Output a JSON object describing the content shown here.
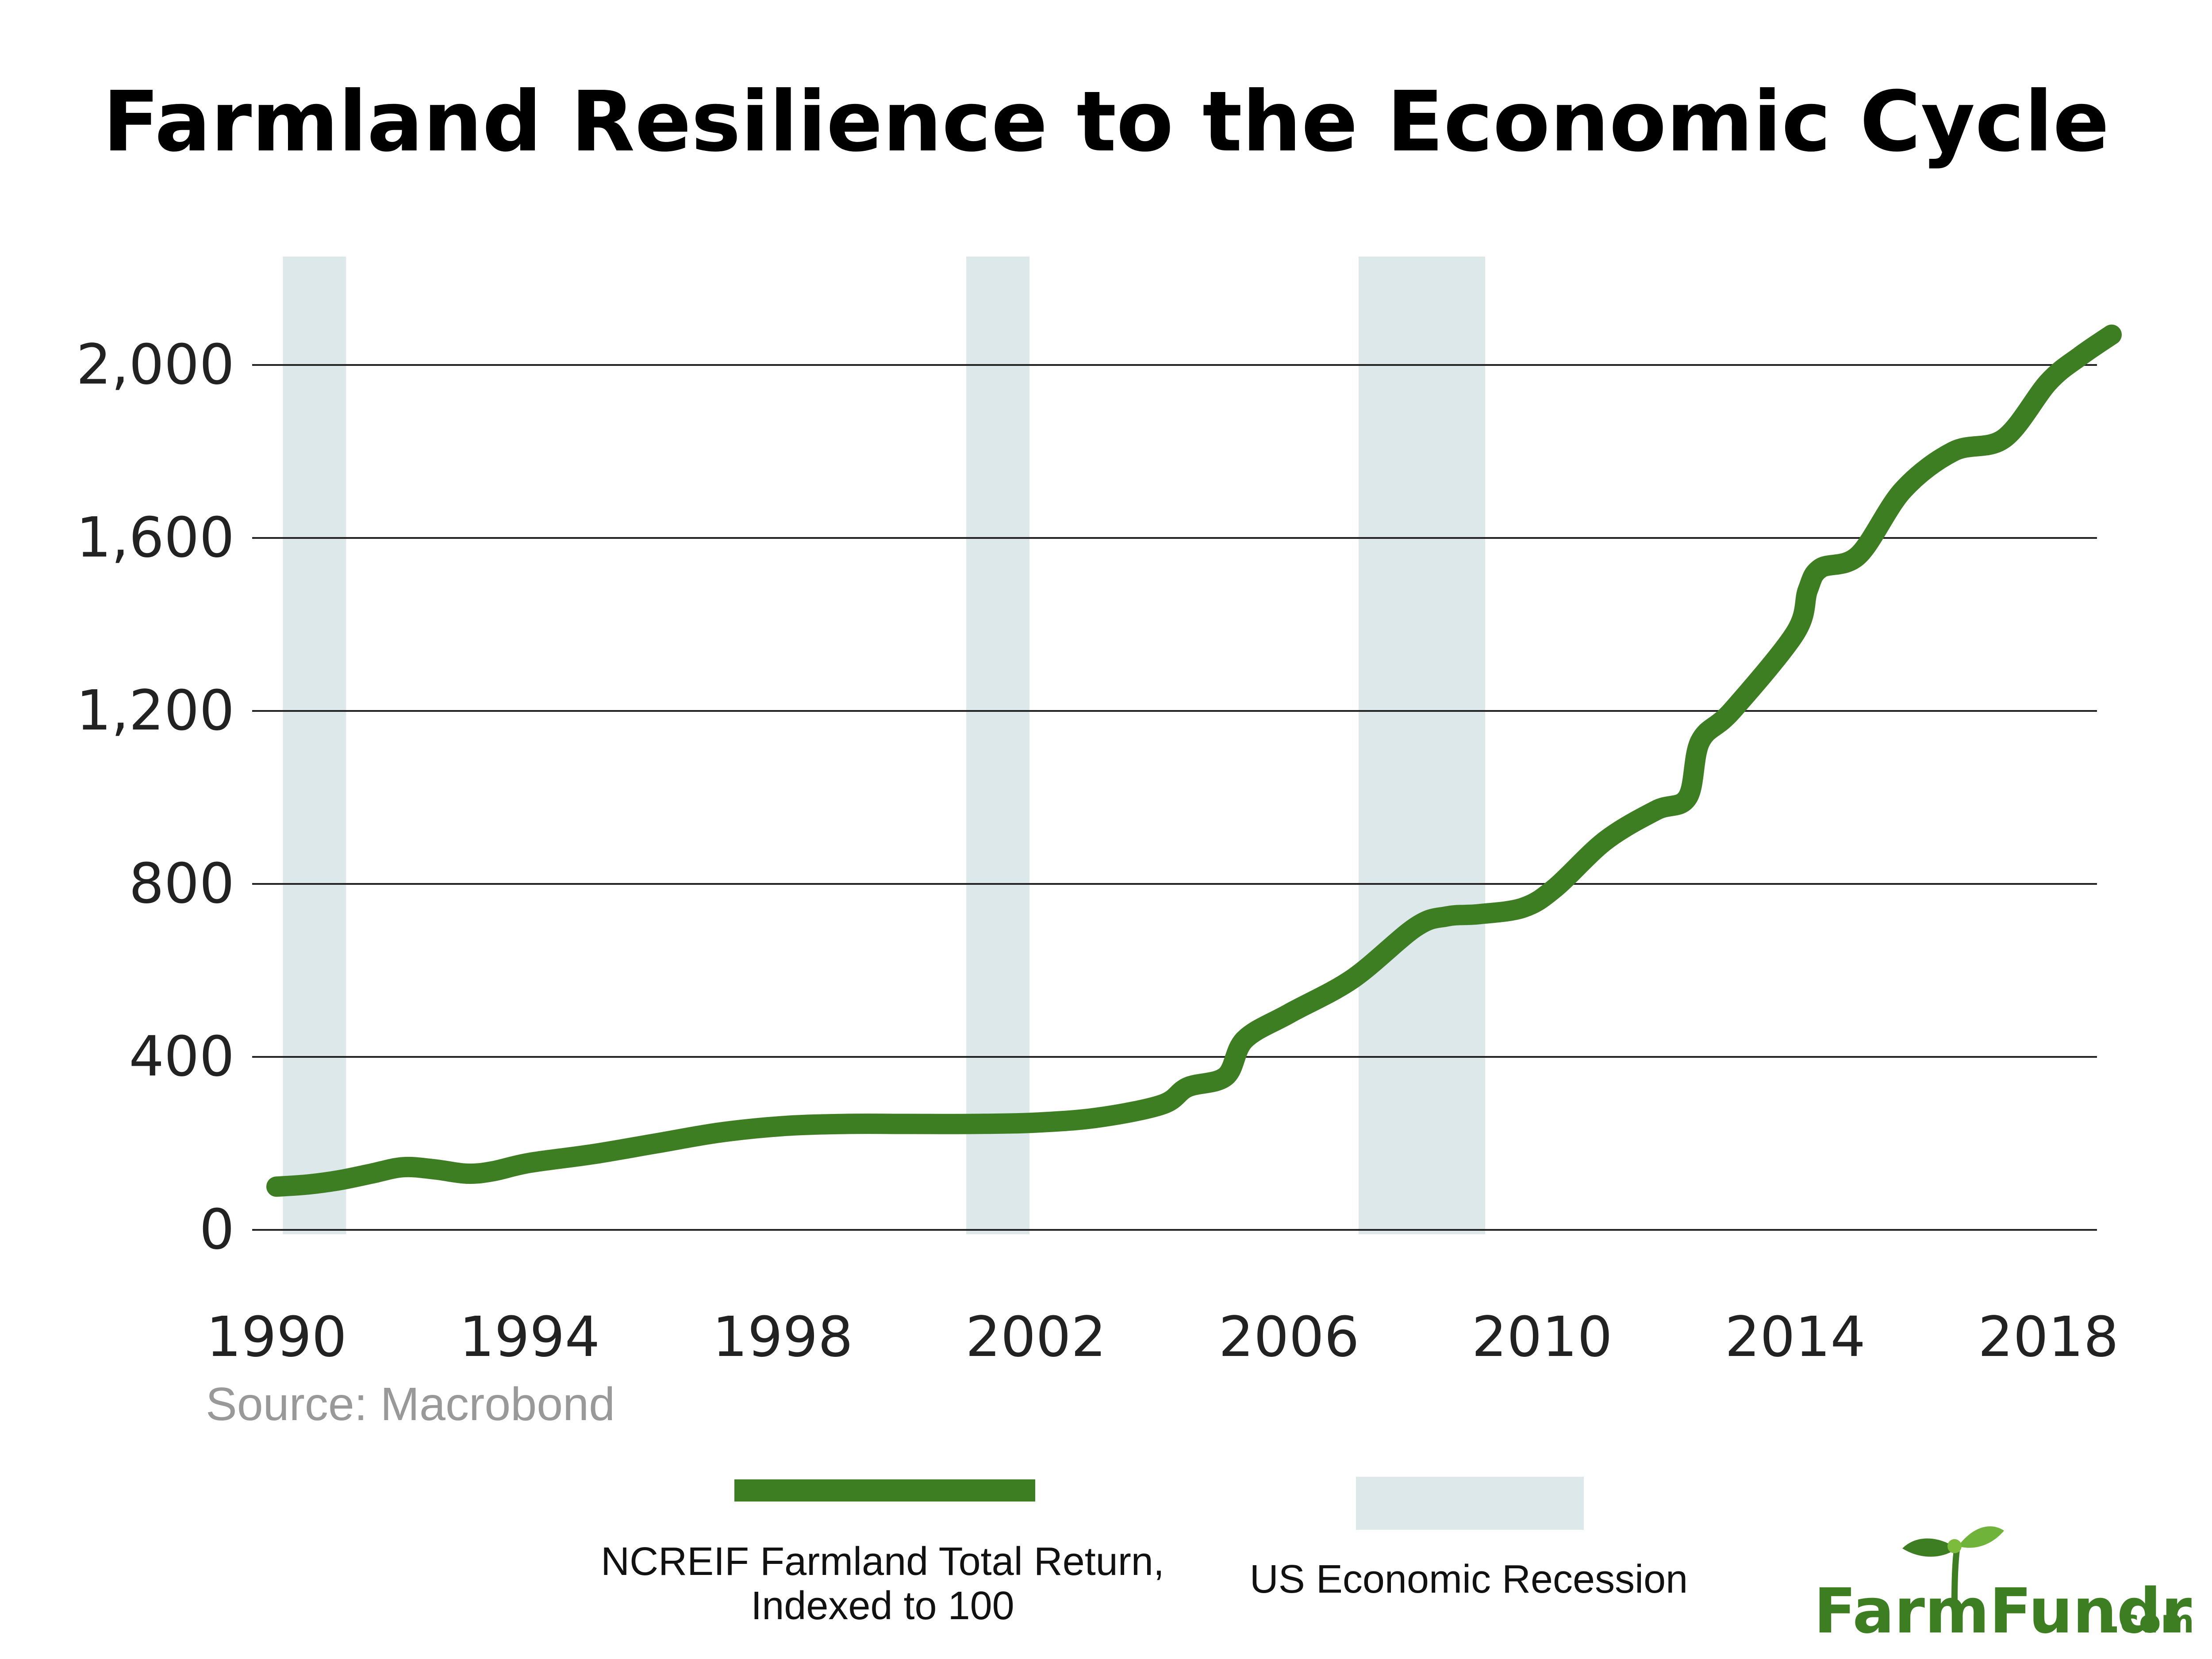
{
  "chart_data": {
    "type": "line",
    "title": "Farmland Resilience to the Economic Cycle",
    "xlabel": "",
    "ylabel": "",
    "xlim": [
      1990,
      2019
    ],
    "ylim": [
      0,
      2200
    ],
    "x_ticks": [
      1990,
      1994,
      1998,
      2002,
      2006,
      2010,
      2014,
      2018
    ],
    "x_tick_labels": [
      "1990",
      "1994",
      "1998",
      "2002",
      "2006",
      "2010",
      "2014",
      "2018"
    ],
    "y_ticks": [
      0,
      400,
      800,
      1200,
      1600,
      2000
    ],
    "y_tick_labels": [
      "0",
      "400",
      "800",
      "1,200",
      "1,600",
      "2,000"
    ],
    "grid": "horizontal",
    "series": [
      {
        "name": "NCREIF Farmland Total Return, Indexed to 100",
        "color": "#3e7e23",
        "x": [
          1990,
          1990.5,
          1991,
          1991.5,
          1992,
          1992.5,
          1993,
          1993.4,
          1994,
          1995,
          1996,
          1997,
          1998,
          1999,
          2000,
          2001,
          2002,
          2003,
          2004,
          2004.4,
          2005,
          2005.3,
          2006,
          2007,
          2008,
          2008.5,
          2009,
          2009.7,
          2010.2,
          2011,
          2011.8,
          2012.3,
          2012.5,
          2013,
          2014,
          2014.2,
          2014.4,
          2015,
          2015.7,
          2016.5,
          2017.3,
          2018,
          2018.5,
          2019
        ],
        "y": [
          100,
          105,
          115,
          130,
          145,
          140,
          130,
          135,
          155,
          175,
          200,
          225,
          240,
          245,
          245,
          245,
          248,
          260,
          290,
          330,
          355,
          440,
          500,
          580,
          700,
          725,
          730,
          745,
          790,
          900,
          970,
          1000,
          1130,
          1200,
          1380,
          1480,
          1530,
          1560,
          1710,
          1800,
          1830,
          1960,
          2020,
          2070
        ]
      }
    ],
    "bands": [
      {
        "name": "US Economic Recession",
        "color": "#dde8ea",
        "x_start": 1990.1,
        "x_end": 1991.1
      },
      {
        "name": "US Economic Recession",
        "color": "#dde8ea",
        "x_start": 2000.9,
        "x_end": 2001.9
      },
      {
        "name": "US Economic Recession",
        "color": "#dde8ea",
        "x_start": 2007.1,
        "x_end": 2009.1
      }
    ],
    "source": "Source: Macrobond",
    "legend": {
      "line_label_line1": "NCREIF Farmland Total Return,",
      "line_label_line2": "Indexed to 100",
      "band_label": "US Economic Recession",
      "position": "bottom"
    }
  },
  "brand": {
    "logo_main": "FarmFundr",
    "logo_suffix": ".com",
    "color": "#3e7e23"
  }
}
